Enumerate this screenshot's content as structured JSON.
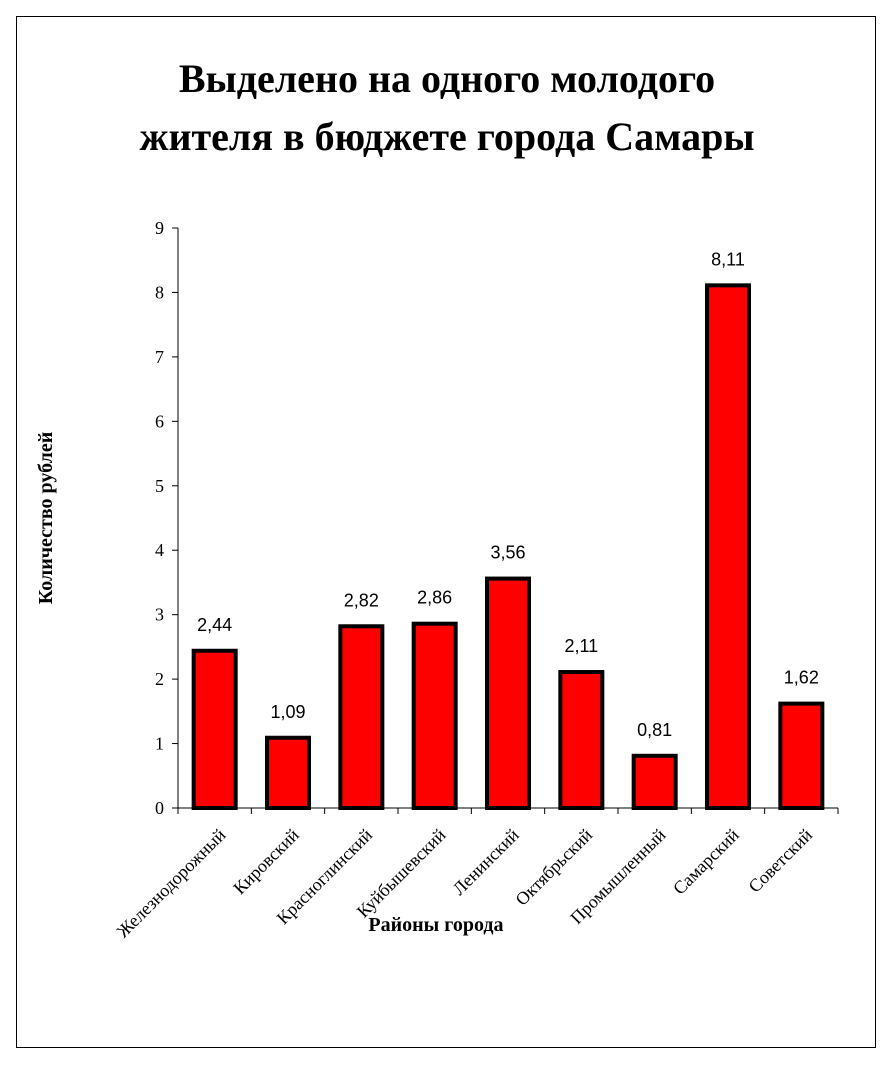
{
  "chart_data": {
    "type": "bar",
    "title": "Выделено на одного молодого\nжителя в бюджете города Самары",
    "xlabel": "Районы города",
    "ylabel": "Количество рублей",
    "categories": [
      "Железнодорожный",
      "Кировский",
      "Красноглинский",
      "Куйбышевский",
      "Ленинский",
      "Октябрьский",
      "Промышленный",
      "Самарский",
      "Советский"
    ],
    "values": [
      2.44,
      1.09,
      2.82,
      2.86,
      3.56,
      2.11,
      0.81,
      8.11,
      1.62
    ],
    "value_labels": [
      "2,44",
      "1,09",
      "2,82",
      "2,86",
      "3,56",
      "2,11",
      "0,81",
      "8,11",
      "1,62"
    ],
    "ylim": [
      0,
      9
    ],
    "yticks": [
      "0",
      "1",
      "2",
      "3",
      "4",
      "5",
      "6",
      "7",
      "8",
      "9"
    ],
    "grid": false,
    "legend": "none",
    "colors": {
      "bar_fill": "#ff0000",
      "bar_stroke": "#000000"
    }
  }
}
